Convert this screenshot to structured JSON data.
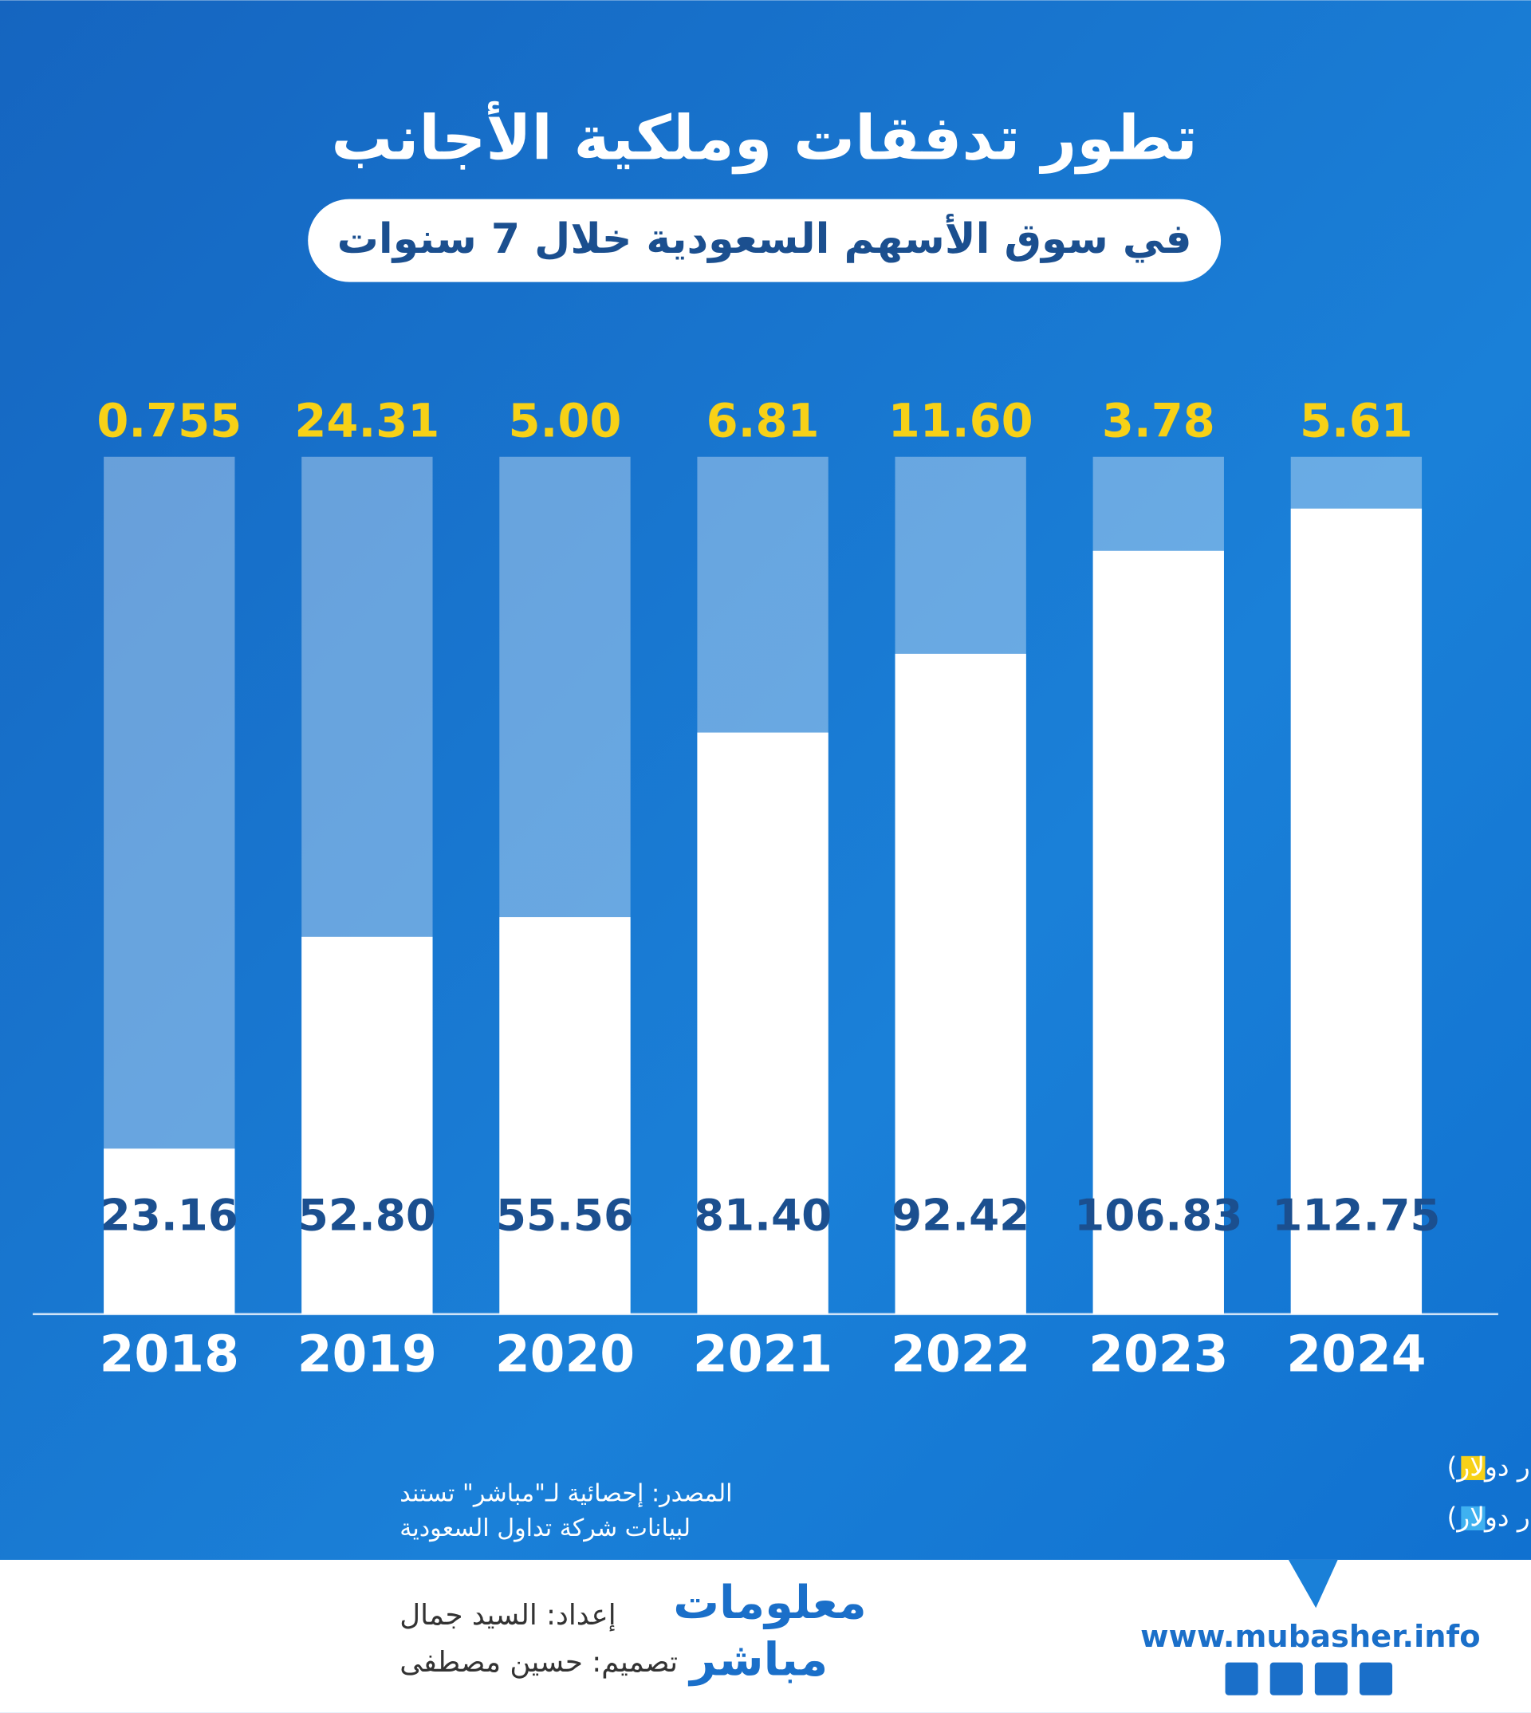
{
  "chart_data": {
    "type": "bar",
    "title": "تطور تدفقات وملكية الأجانب",
    "subtitle": "في سوق الأسهم السعودية خلال 7 سنوات",
    "categories": [
      "2018",
      "2019",
      "2020",
      "2021",
      "2022",
      "2023",
      "2024"
    ],
    "series": [
      {
        "name": "التدفقات (مليار دولار)",
        "color": "#f7d117",
        "values": [
          0.755,
          24.31,
          5,
          6.81,
          11.6,
          3.78,
          5.61
        ],
        "value_labels": [
          "0.755",
          "24.31",
          "5.00",
          "6.81",
          "11.60",
          "3.78",
          "5.61"
        ]
      },
      {
        "name": "تطور قيمة الملكية (مليار دولار)",
        "color": "#3fb1f0",
        "bar_color": "#ffffff",
        "values": [
          23.16,
          52.8,
          55.56,
          81.4,
          92.42,
          106.83,
          112.75
        ],
        "value_labels": [
          "23.16",
          "52.80",
          "55.56",
          "81.40",
          "92.42",
          "106.83",
          "112.75"
        ]
      }
    ],
    "ylim": [
      0,
      120
    ]
  },
  "source": [
    "المصدر: إحصائية لـ\"مباشر\" تستند",
    "لبيانات شركة تداول السعودية"
  ],
  "credits": [
    "إعداد: السيد جمال",
    "تصميم: حسين مصطفى"
  ],
  "logo": [
    "معلومات",
    "مباشر"
  ],
  "url": "www.mubasher.info"
}
